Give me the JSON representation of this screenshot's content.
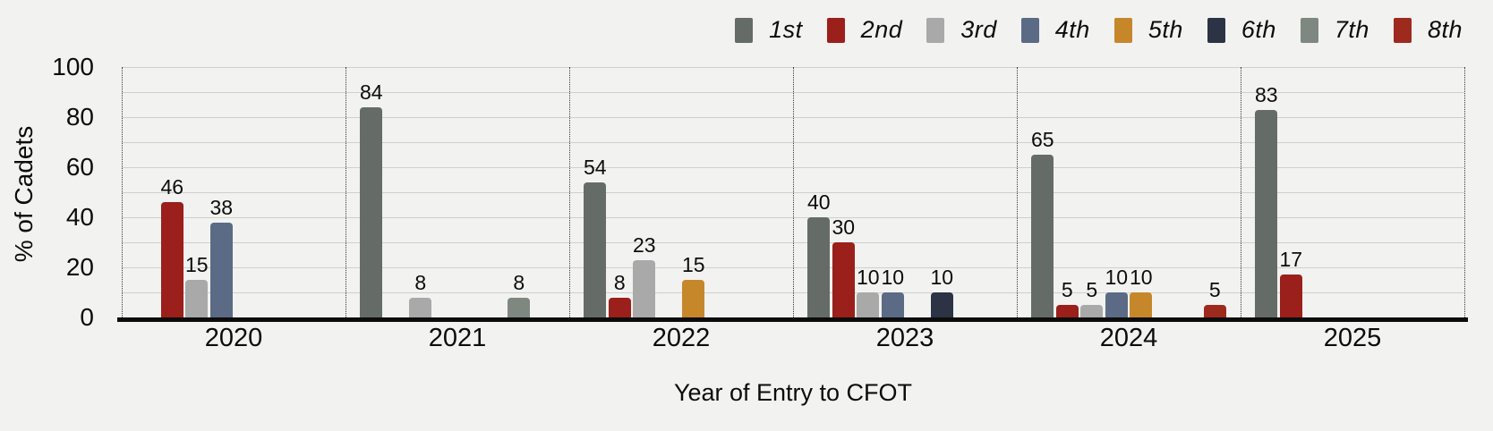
{
  "chart_data": {
    "type": "bar",
    "title": "",
    "xlabel": "Year of Entry to CFOT",
    "ylabel": "% of Cadets",
    "ylim": [
      0,
      100
    ],
    "yticks": [
      0,
      20,
      40,
      60,
      80,
      100
    ],
    "grid": "horizontal, minor line every 10 units",
    "legend_position": "top-right",
    "bar_labels": true,
    "categories": [
      "2020",
      "2021",
      "2022",
      "2023",
      "2024",
      "2025"
    ],
    "series": [
      {
        "name": "1st",
        "color": "#656c67",
        "values": [
          0,
          84,
          54,
          40,
          65,
          83
        ]
      },
      {
        "name": "2nd",
        "color": "#9b1f1a",
        "values": [
          46,
          0,
          8,
          30,
          5,
          17
        ]
      },
      {
        "name": "3rd",
        "color": "#a9a9a9",
        "values": [
          15,
          8,
          23,
          10,
          5,
          0
        ]
      },
      {
        "name": "4th",
        "color": "#5b6b86",
        "values": [
          38,
          0,
          0,
          10,
          10,
          0
        ]
      },
      {
        "name": "5th",
        "color": "#c6872b",
        "values": [
          0,
          0,
          15,
          0,
          10,
          0
        ]
      },
      {
        "name": "6th",
        "color": "#2b3345",
        "values": [
          0,
          0,
          0,
          10,
          0,
          0
        ]
      },
      {
        "name": "7th",
        "color": "#7e8881",
        "values": [
          0,
          8,
          0,
          0,
          0,
          0
        ]
      },
      {
        "name": "8th",
        "color": "#9e2a1e",
        "values": [
          0,
          0,
          0,
          0,
          5,
          0
        ]
      }
    ],
    "colors": {
      "background": "#f2f2f0",
      "gridline": "#cfcfcd",
      "axis_line": "#0c0c0c",
      "separator": "#3a3a3a"
    }
  }
}
